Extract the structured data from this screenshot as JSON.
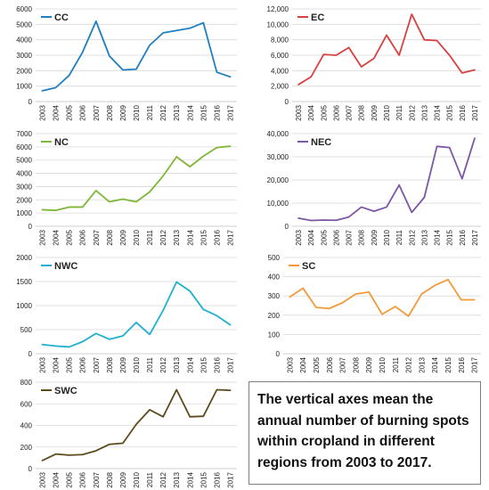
{
  "chart_data": [
    {
      "type": "line",
      "series": [
        {
          "name": "CC",
          "color": "#1f7fc1",
          "values": [
            700,
            900,
            1700,
            3200,
            5200,
            2950,
            2050,
            2100,
            3650,
            4450,
            4600,
            4750,
            5100,
            1900,
            1600
          ]
        }
      ],
      "x": [
        "2003",
        "2004",
        "2005",
        "2006",
        "2007",
        "2008",
        "2009",
        "2010",
        "2011",
        "2012",
        "2013",
        "2014",
        "2015",
        "2016",
        "2017"
      ],
      "ylim": [
        0,
        6000
      ],
      "yticks": [
        0,
        1000,
        2000,
        3000,
        4000,
        5000,
        6000
      ],
      "ytick_labels": [
        "0",
        "1000",
        "2000",
        "3000",
        "4000",
        "5000",
        "6000"
      ],
      "legend": "top-left",
      "grid": true
    },
    {
      "type": "line",
      "series": [
        {
          "name": "EC",
          "color": "#d94141",
          "values": [
            2200,
            3200,
            6100,
            6000,
            7000,
            4500,
            5600,
            8600,
            6000,
            11300,
            8000,
            7900,
            6000,
            3700,
            4100
          ]
        }
      ],
      "x": [
        "2003",
        "2004",
        "2005",
        "2006",
        "2007",
        "2008",
        "2009",
        "2010",
        "2011",
        "2012",
        "2013",
        "2014",
        "2015",
        "2016",
        "2017"
      ],
      "ylim": [
        0,
        12000
      ],
      "yticks": [
        0,
        2000,
        4000,
        6000,
        8000,
        10000,
        12000
      ],
      "ytick_labels": [
        "0",
        "2,000",
        "4,000",
        "6,000",
        "8,000",
        "10,000",
        "12,000"
      ],
      "legend": "top-left",
      "grid": true
    },
    {
      "type": "line",
      "series": [
        {
          "name": "NC",
          "color": "#7fb539",
          "values": [
            1250,
            1200,
            1450,
            1450,
            2700,
            1850,
            2050,
            1850,
            2600,
            3800,
            5250,
            4500,
            5300,
            5950,
            6050
          ]
        }
      ],
      "x": [
        "2003",
        "2004",
        "2005",
        "2006",
        "2007",
        "2008",
        "2009",
        "2010",
        "2011",
        "2012",
        "2013",
        "2014",
        "2015",
        "2016",
        "2017"
      ],
      "ylim": [
        0,
        7000
      ],
      "yticks": [
        0,
        1000,
        2000,
        3000,
        4000,
        5000,
        6000,
        7000
      ],
      "ytick_labels": [
        "0",
        "1000",
        "2000",
        "3000",
        "4000",
        "5000",
        "6000",
        "7000"
      ],
      "legend": "top-left",
      "grid": true
    },
    {
      "type": "line",
      "series": [
        {
          "name": "NEC",
          "color": "#7d56a6",
          "values": [
            3500,
            2500,
            2700,
            2600,
            4000,
            8300,
            6500,
            8300,
            17800,
            6000,
            12500,
            34500,
            34000,
            20500,
            38000
          ]
        }
      ],
      "x": [
        "2003",
        "2004",
        "2005",
        "2006",
        "2007",
        "2008",
        "2009",
        "2010",
        "2011",
        "2012",
        "2013",
        "2014",
        "2015",
        "2016",
        "2017"
      ],
      "ylim": [
        0,
        40000
      ],
      "yticks": [
        0,
        10000,
        20000,
        30000,
        40000
      ],
      "ytick_labels": [
        "0",
        "10,000",
        "20,000",
        "30,000",
        "40,000"
      ],
      "legend": "top-left",
      "grid": true
    },
    {
      "type": "line",
      "series": [
        {
          "name": "NWC",
          "color": "#1fb0cf",
          "values": [
            190,
            160,
            140,
            250,
            420,
            300,
            370,
            650,
            400,
            900,
            1490,
            1300,
            920,
            790,
            600
          ]
        }
      ],
      "x": [
        "2003",
        "2004",
        "2005",
        "2006",
        "2007",
        "2008",
        "2009",
        "2010",
        "2011",
        "2012",
        "2013",
        "2014",
        "2015",
        "2016",
        "2017"
      ],
      "ylim": [
        0,
        2000
      ],
      "yticks": [
        0,
        500,
        1000,
        1500,
        2000
      ],
      "ytick_labels": [
        "0",
        "500",
        "1000",
        "1500",
        "2000"
      ],
      "legend": "top-left",
      "grid": true
    },
    {
      "type": "line",
      "series": [
        {
          "name": "SC",
          "color": "#f39a3a",
          "values": [
            295,
            340,
            240,
            235,
            265,
            310,
            320,
            205,
            245,
            195,
            310,
            355,
            385,
            280,
            280
          ]
        }
      ],
      "x": [
        "2003",
        "2004",
        "2005",
        "2006",
        "2007",
        "2008",
        "2009",
        "2010",
        "2011",
        "2012",
        "2013",
        "2014",
        "2015",
        "2016",
        "2017"
      ],
      "ylim": [
        0,
        500
      ],
      "yticks": [
        0,
        100,
        200,
        300,
        400,
        500
      ],
      "ytick_labels": [
        "0",
        "100",
        "200",
        "300",
        "400",
        "500"
      ],
      "legend": "top-left",
      "grid": true
    },
    {
      "type": "line",
      "series": [
        {
          "name": "SWC",
          "color": "#5e4b1c",
          "values": [
            75,
            135,
            125,
            130,
            165,
            225,
            235,
            410,
            545,
            480,
            730,
            480,
            485,
            730,
            725
          ]
        }
      ],
      "x": [
        "2003",
        "2004",
        "2005",
        "2006",
        "2007",
        "2008",
        "2009",
        "2010",
        "2011",
        "2012",
        "2013",
        "2014",
        "2015",
        "2016",
        "2017"
      ],
      "ylim": [
        0,
        800
      ],
      "yticks": [
        0,
        200,
        400,
        600,
        800
      ],
      "ytick_labels": [
        "0",
        "200",
        "400",
        "600",
        "800"
      ],
      "legend": "top-left",
      "grid": true
    }
  ],
  "note": {
    "text": "The vertical axes mean the annual number of burning spots within cropland in different regions from 2003 to 2017."
  }
}
